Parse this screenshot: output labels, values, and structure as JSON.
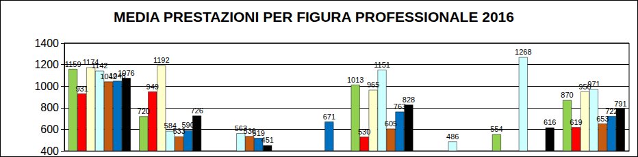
{
  "chart_data": {
    "type": "bar",
    "title": "MEDIA PRESTAZIONI PER FIGURA PROFESSIONALE 2016",
    "categories": [
      null,
      null,
      null,
      null,
      null,
      null,
      null,
      null
    ],
    "series": [
      {
        "color": "#92d050",
        "values": [
          1159,
          720,
          null,
          null,
          1013,
          null,
          554,
          870
        ]
      },
      {
        "color": "#ff0000",
        "values": [
          931,
          949,
          null,
          null,
          530,
          null,
          null,
          619
        ]
      },
      {
        "color": "#ffffcc",
        "values": [
          1174,
          1192,
          null,
          null,
          965,
          null,
          null,
          950
        ]
      },
      {
        "color": "#ccffff",
        "values": [
          1142,
          584,
          563,
          null,
          1151,
          486,
          1268,
          971
        ]
      },
      {
        "color": "#c55a11",
        "values": [
          1042,
          533,
          536,
          null,
          605,
          null,
          null,
          653
        ]
      },
      {
        "color": "#0070c0",
        "values": [
          1048,
          590,
          519,
          671,
          763,
          null,
          null,
          722
        ]
      },
      {
        "color": "#000000",
        "values": [
          1076,
          726,
          451,
          null,
          828,
          null,
          616,
          791
        ]
      }
    ],
    "ylim": [
      400,
      1400
    ],
    "yticks": [
      400,
      600,
      800,
      1000,
      1200,
      1400
    ],
    "grid": true,
    "data_labels": true,
    "tick_labels": "y"
  }
}
